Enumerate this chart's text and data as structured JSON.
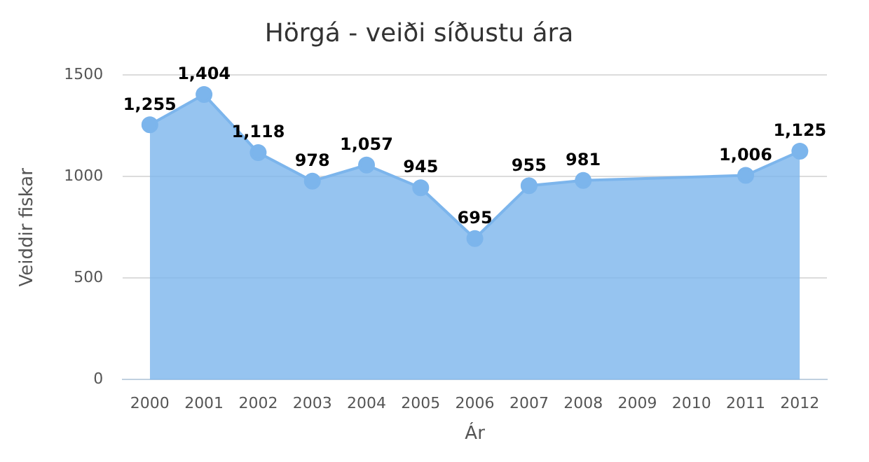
{
  "chart_data": {
    "type": "area",
    "title": "Hörgá - veiði síðustu ára",
    "xlabel": "Ár",
    "ylabel": "Veiddir fiskar",
    "categories": [
      "2000",
      "2001",
      "2002",
      "2003",
      "2004",
      "2005",
      "2006",
      "2007",
      "2008",
      "2009",
      "2010",
      "2011",
      "2012"
    ],
    "series": [
      {
        "color": "#7cb5ec",
        "values": [
          1255,
          1404,
          1118,
          978,
          1057,
          945,
          695,
          955,
          981,
          null,
          null,
          1006,
          1125
        ],
        "value_labels": [
          "1,255",
          "1,404",
          "1,118",
          "978",
          "1,057",
          "945",
          "695",
          "955",
          "981",
          null,
          null,
          "1,006",
          "1,125"
        ]
      }
    ],
    "ylim": [
      0,
      1500
    ],
    "yticks": [
      0,
      500,
      1000,
      1500
    ],
    "grid": "y",
    "legend": false,
    "marker": "circle",
    "line_style": "solid"
  }
}
